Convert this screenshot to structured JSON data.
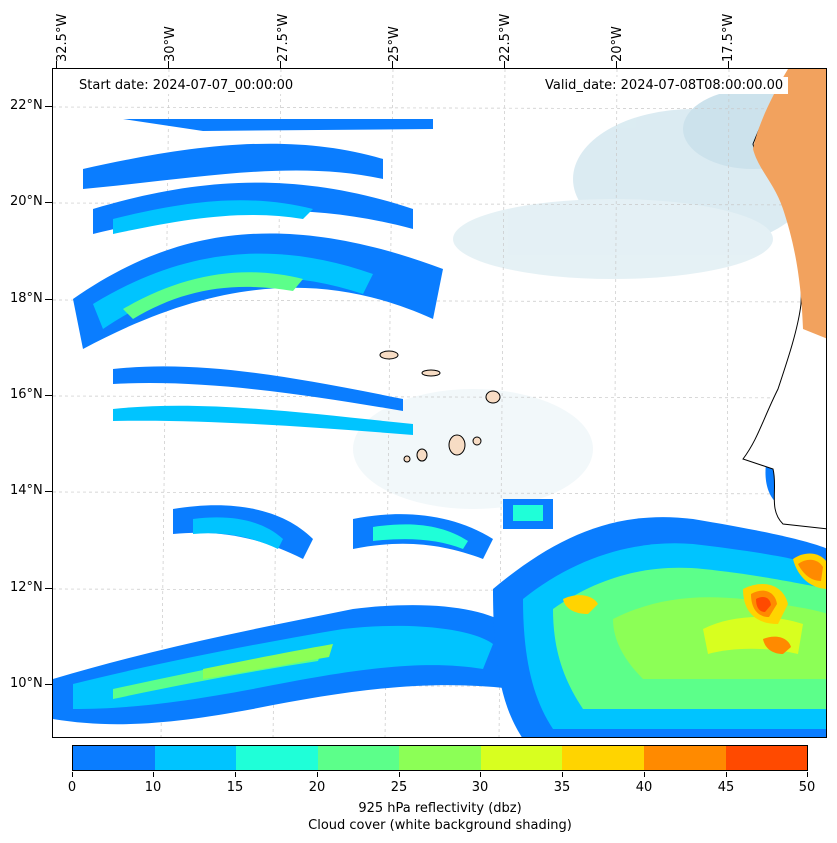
{
  "header": {
    "start_date": "Start date: 2024-07-07_00:00:00",
    "valid_date": "Valid_date: 2024-07-08T08:00:00.00"
  },
  "axes": {
    "longitude_labels": [
      "32.5°W",
      "30°W",
      "27.5°W",
      "25°W",
      "22.5°W",
      "20°W",
      "17.5°W"
    ],
    "latitude_labels": [
      "22°N",
      "20°N",
      "18°N",
      "16°N",
      "14°N",
      "12°N",
      "10°N"
    ]
  },
  "colorbar": {
    "ticks": [
      "0",
      "10",
      "15",
      "20",
      "25",
      "30",
      "35",
      "40",
      "45",
      "50"
    ],
    "colors": [
      "#0a7dff",
      "#00c4ff",
      "#1fffd8",
      "#5cff8a",
      "#8cff56",
      "#d8ff1f",
      "#ffd400",
      "#ff8a00",
      "#ff4a00"
    ],
    "label_line1": "925 hPa reflectivity (dbz)",
    "label_line2": "Cloud cover (white background shading)"
  },
  "colors": {
    "land_africa": "#f2a25e",
    "islands": "#f7dcc4",
    "cloud_shading": "#cfe5ee",
    "grid": "#c8c8c8"
  }
}
